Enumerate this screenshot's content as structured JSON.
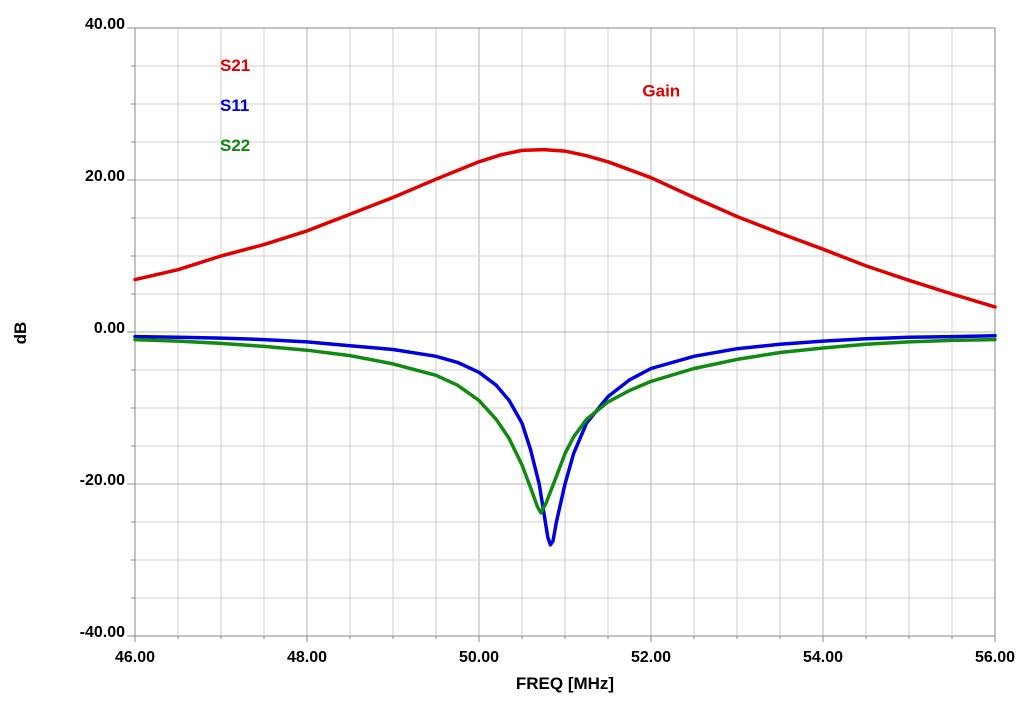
{
  "chart_data": {
    "type": "line",
    "title": "",
    "xlabel": "FREQ [MHz]",
    "ylabel": "dB",
    "xlim": [
      46,
      56
    ],
    "ylim": [
      -40,
      40
    ],
    "x_major_ticks": [
      46,
      48,
      50,
      52,
      54,
      56
    ],
    "x_tick_labels": [
      "46.00",
      "48.00",
      "50.00",
      "52.00",
      "54.00",
      "56.00"
    ],
    "y_major_ticks": [
      40,
      20,
      0,
      -20,
      -40
    ],
    "y_tick_labels": [
      "40.00",
      "20.00",
      "0.00",
      "-20.00",
      "-40.00"
    ],
    "x_minor_step": 0.5,
    "y_minor_step": 5,
    "grid": true,
    "legend_position": "top-left",
    "annotations": [
      {
        "text": "Gain",
        "x": 51.9,
        "y": 31,
        "color": "#e00000"
      }
    ],
    "series": [
      {
        "name": "S21",
        "color": "#e00000",
        "x": [
          46.0,
          46.5,
          47.0,
          47.5,
          48.0,
          48.5,
          49.0,
          49.5,
          50.0,
          50.25,
          50.5,
          50.75,
          51.0,
          51.25,
          51.5,
          52.0,
          52.5,
          53.0,
          53.5,
          54.0,
          54.5,
          55.0,
          55.5,
          56.0
        ],
        "y": [
          6.9,
          8.2,
          10.0,
          11.5,
          13.3,
          15.5,
          17.7,
          20.1,
          22.4,
          23.3,
          23.9,
          24.0,
          23.8,
          23.2,
          22.4,
          20.3,
          17.7,
          15.2,
          13.0,
          10.9,
          8.7,
          6.8,
          5.0,
          3.3
        ]
      },
      {
        "name": "S11",
        "color": "#0000e0",
        "x": [
          46.0,
          46.5,
          47.0,
          47.5,
          48.0,
          48.5,
          49.0,
          49.5,
          49.75,
          50.0,
          50.2,
          50.35,
          50.5,
          50.6,
          50.7,
          50.75,
          50.8,
          50.83,
          50.86,
          50.9,
          51.0,
          51.1,
          51.25,
          51.5,
          51.75,
          52.0,
          52.5,
          53.0,
          53.5,
          54.0,
          54.5,
          55.0,
          55.5,
          56.0
        ],
        "y": [
          -0.6,
          -0.7,
          -0.8,
          -1.0,
          -1.3,
          -1.8,
          -2.3,
          -3.2,
          -4.0,
          -5.3,
          -7.0,
          -9.0,
          -12.0,
          -15.5,
          -20.0,
          -23.5,
          -27.0,
          -28.0,
          -27.5,
          -25.0,
          -20.0,
          -16.0,
          -12.0,
          -8.5,
          -6.3,
          -4.8,
          -3.2,
          -2.2,
          -1.6,
          -1.2,
          -0.9,
          -0.7,
          -0.6,
          -0.5
        ]
      },
      {
        "name": "S22",
        "color": "#108a10",
        "x": [
          46.0,
          46.5,
          47.0,
          47.5,
          48.0,
          48.5,
          49.0,
          49.5,
          49.75,
          50.0,
          50.2,
          50.35,
          50.5,
          50.6,
          50.68,
          50.72,
          50.78,
          50.9,
          51.0,
          51.1,
          51.25,
          51.5,
          51.75,
          52.0,
          52.5,
          53.0,
          53.5,
          54.0,
          54.5,
          55.0,
          55.5,
          56.0
        ],
        "y": [
          -1.0,
          -1.2,
          -1.5,
          -1.9,
          -2.4,
          -3.1,
          -4.2,
          -5.7,
          -7.0,
          -9.0,
          -11.5,
          -14.0,
          -17.5,
          -20.5,
          -23.0,
          -23.8,
          -22.5,
          -19.0,
          -16.0,
          -13.8,
          -11.5,
          -9.2,
          -7.7,
          -6.5,
          -4.8,
          -3.6,
          -2.7,
          -2.1,
          -1.6,
          -1.3,
          -1.1,
          -1.0
        ]
      }
    ]
  }
}
